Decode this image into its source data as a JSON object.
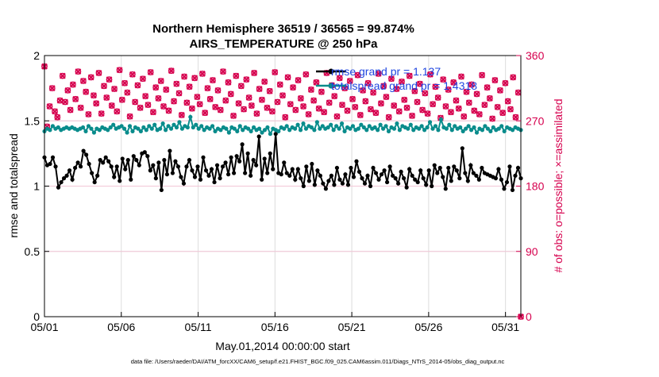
{
  "chart_data": {
    "type": "line",
    "title": "Northern Hemisphere 36519 / 36565 = 99.874%",
    "subtitle": "AIRS_TEMPERATURE @ 250 hPa",
    "xlabel": "May.01,2014 00:00:00 start",
    "ylabel": "rmse and totalspread",
    "ylabel_right": "# of obs: o=possible; ×=assimilated",
    "xlim": [
      0,
      31
    ],
    "ylim": [
      0,
      2
    ],
    "ylim_right": [
      0,
      360
    ],
    "x_ticks": [
      0,
      5,
      10,
      15,
      20,
      25,
      30
    ],
    "x_tick_labels": [
      "05/01",
      "05/06",
      "05/11",
      "05/16",
      "05/21",
      "05/26",
      "05/31"
    ],
    "y_ticks": [
      0,
      0.5,
      1,
      1.5,
      2
    ],
    "y_tick_labels": [
      "0",
      "0.5",
      "1",
      "1.5",
      "2"
    ],
    "y_ticks_right": [
      0,
      90,
      180,
      270,
      360
    ],
    "y_tick_labels_right": [
      "0",
      "90",
      "180",
      "270",
      "360"
    ],
    "grid": true,
    "legend_position": "top-right",
    "footnote": "data file: /Users/raeder/DAI/ATM_forcXX/CAM6_setup/f.e21.FHIST_BGC.f09_025.CAM6assim.011/Diags_NTrS_2014-05/obs_diag_output.nc",
    "series": [
      {
        "name": "rmse grand pr = 1.137",
        "color": "#000000",
        "axis": "left",
        "marker": "circle",
        "values": [
          1.22,
          1.16,
          1.17,
          1.22,
          1.15,
          0.99,
          1.03,
          1.06,
          1.08,
          1.12,
          1.05,
          1.14,
          1.18,
          1.15,
          1.27,
          1.24,
          1.17,
          1.1,
          1.03,
          1.08,
          1.2,
          1.18,
          1.22,
          1.19,
          1.15,
          1.07,
          1.15,
          1.04,
          1.21,
          1.13,
          1.2,
          1.05,
          1.23,
          1.2,
          1.16,
          1.25,
          1.26,
          1.23,
          1.12,
          1.16,
          1.06,
          1.18,
          0.97,
          1.2,
          1.09,
          1.27,
          1.1,
          1.19,
          1.15,
          1.07,
          1.02,
          1.15,
          1.2,
          1.12,
          1.07,
          1.15,
          1.05,
          1.22,
          1.12,
          1.08,
          1.13,
          1.03,
          1.16,
          1.06,
          1.15,
          1.18,
          1.09,
          1.22,
          1.1,
          1.23,
          1.19,
          1.32,
          1.1,
          1.25,
          1.08,
          1.2,
          1.16,
          1.38,
          1.05,
          1.21,
          1.1,
          1.25,
          1.13,
          1.4,
          1.1,
          1.09,
          1.18,
          1.1,
          1.08,
          1.13,
          1.05,
          1.13,
          1.06,
          1.0,
          1.15,
          1.04,
          1.17,
          1.01,
          1.12,
          1.08,
          1.02,
          0.98,
          1.04,
          1.08,
          1.01,
          1.14,
          1.05,
          1.02,
          1.09,
          1.01,
          1.14,
          1.07,
          1.19,
          1.11,
          1.06,
          1.02,
          1.08,
          1.0,
          1.14,
          1.1,
          1.05,
          1.09,
          1.12,
          1.03,
          1.15,
          1.08,
          1.06,
          1.02,
          1.11,
          1.06,
          0.99,
          1.13,
          1.08,
          1.05,
          1.03,
          1.12,
          1.06,
          1.01,
          1.12,
          1.0,
          1.16,
          1.1,
          1.14,
          1.07,
          0.98,
          1.14,
          1.04,
          1.15,
          1.12,
          1.06,
          1.29,
          1.1,
          1.04,
          1.16,
          1.1,
          1.08,
          1.05,
          1.14,
          1.1,
          1.09,
          1.08,
          1.07,
          1.06,
          1.13,
          1.05,
          0.98,
          1.03,
          1.15,
          0.97,
          1.08,
          1.14,
          1.06
        ]
      },
      {
        "name": "totalspread grand pr = 1.4318",
        "color": "#0a8c8c",
        "axis": "left",
        "marker": "circle",
        "values": [
          1.42,
          1.44,
          1.43,
          1.46,
          1.44,
          1.45,
          1.43,
          1.44,
          1.45,
          1.44,
          1.45,
          1.44,
          1.43,
          1.44,
          1.45,
          1.42,
          1.46,
          1.44,
          1.41,
          1.44,
          1.43,
          1.45,
          1.44,
          1.43,
          1.45,
          1.47,
          1.44,
          1.45,
          1.46,
          1.44,
          1.41,
          1.46,
          1.42,
          1.45,
          1.44,
          1.42,
          1.45,
          1.43,
          1.46,
          1.44,
          1.47,
          1.43,
          1.44,
          1.48,
          1.43,
          1.46,
          1.44,
          1.47,
          1.45,
          1.49,
          1.44,
          1.46,
          1.45,
          1.53,
          1.45,
          1.47,
          1.44,
          1.46,
          1.43,
          1.45,
          1.44,
          1.46,
          1.42,
          1.44,
          1.43,
          1.45,
          1.44,
          1.41,
          1.45,
          1.44,
          1.42,
          1.46,
          1.43,
          1.45,
          1.44,
          1.42,
          1.45,
          1.43,
          1.44,
          1.41,
          1.43,
          1.45,
          1.4,
          1.44,
          1.43,
          1.42,
          1.45,
          1.44,
          1.46,
          1.43,
          1.45,
          1.44,
          1.47,
          1.43,
          1.48,
          1.44,
          1.46,
          1.45,
          1.43,
          1.49,
          1.44,
          1.46,
          1.44,
          1.45,
          1.47,
          1.43,
          1.46,
          1.44,
          1.48,
          1.42,
          1.45,
          1.44,
          1.46,
          1.43,
          1.44,
          1.47,
          1.45,
          1.43,
          1.46,
          1.44,
          1.45,
          1.43,
          1.47,
          1.44,
          1.46,
          1.42,
          1.45,
          1.44,
          1.48,
          1.43,
          1.46,
          1.45,
          1.44,
          1.47,
          1.43,
          1.45,
          1.44,
          1.46,
          1.43,
          1.45,
          1.49,
          1.44,
          1.46,
          1.43,
          1.51,
          1.45,
          1.44,
          1.47,
          1.43,
          1.46,
          1.44,
          1.45,
          1.42,
          1.44,
          1.46,
          1.43,
          1.45,
          1.41,
          1.44,
          1.43,
          1.46,
          1.44,
          1.42,
          1.45,
          1.43,
          1.44,
          1.46,
          1.42,
          1.45,
          1.44,
          1.43,
          1.45,
          1.44,
          1.43
        ]
      },
      {
        "name": "possible",
        "color": "#d6004e",
        "axis": "right",
        "marker": "o",
        "values": [
          345,
          262,
          290,
          315,
          283,
          275,
          298,
          332,
          296,
          312,
          285,
          320,
          300,
          338,
          288,
          325,
          310,
          279,
          330,
          305,
          294,
          336,
          280,
          318,
          302,
          327,
          291,
          314,
          283,
          340,
          299,
          322,
          309,
          276,
          334,
          296,
          319,
          288,
          328,
          304,
          292,
          337,
          282,
          316,
          301,
          325,
          290,
          313,
          284,
          339,
          297,
          321,
          308,
          278,
          331,
          295,
          317,
          287,
          329,
          303,
          293,
          335,
          281,
          315,
          300,
          326,
          289,
          312,
          285,
          338,
          298,
          323,
          307,
          277,
          332,
          294,
          318,
          286,
          327,
          302,
          291,
          336,
          280,
          314,
          299,
          324,
          288,
          311,
          283,
          337,
          296,
          320,
          305,
          275,
          330,
          293,
          316,
          285,
          326,
          301,
          290,
          334,
          279,
          313,
          298,
          323,
          287,
          310,
          282,
          336,
          295,
          319,
          304,
          276,
          329,
          292,
          315,
          284,
          325,
          300,
          289,
          333,
          278,
          312,
          297,
          322,
          286,
          309,
          281,
          335,
          294,
          318,
          303,
          275,
          328,
          291,
          314,
          283,
          324,
          299,
          288,
          332,
          277,
          311,
          296,
          321,
          285,
          308,
          280,
          334,
          293,
          317,
          302,
          274,
          327,
          290,
          313,
          282,
          323,
          298,
          287,
          331,
          276,
          310,
          295,
          320,
          284,
          307,
          279,
          333,
          292,
          316,
          301,
          273,
          326,
          289,
          312,
          281,
          322,
          297,
          286,
          330,
          275,
          309,
          0
        ]
      },
      {
        "name": "assimilated",
        "color": "#d6004e",
        "axis": "right",
        "marker": "x",
        "values": [
          345,
          262,
          290,
          315,
          283,
          275,
          298,
          332,
          296,
          312,
          285,
          320,
          300,
          338,
          288,
          325,
          310,
          279,
          330,
          305,
          294,
          336,
          280,
          318,
          302,
          327,
          291,
          314,
          283,
          340,
          299,
          322,
          309,
          276,
          334,
          296,
          319,
          288,
          328,
          304,
          292,
          337,
          282,
          316,
          301,
          325,
          290,
          313,
          284,
          339,
          297,
          321,
          308,
          278,
          331,
          295,
          317,
          287,
          329,
          303,
          293,
          335,
          281,
          315,
          300,
          326,
          289,
          312,
          285,
          338,
          298,
          323,
          307,
          277,
          332,
          294,
          318,
          286,
          327,
          302,
          291,
          336,
          280,
          314,
          299,
          324,
          288,
          311,
          283,
          337,
          296,
          320,
          305,
          275,
          330,
          293,
          316,
          285,
          326,
          301,
          290,
          334,
          279,
          313,
          298,
          323,
          287,
          310,
          282,
          336,
          295,
          319,
          304,
          276,
          329,
          292,
          315,
          284,
          325,
          300,
          289,
          333,
          278,
          312,
          297,
          322,
          286,
          309,
          281,
          335,
          294,
          318,
          303,
          275,
          328,
          291,
          314,
          283,
          324,
          299,
          288,
          332,
          277,
          311,
          296,
          321,
          285,
          308,
          280,
          334,
          293,
          317,
          302,
          274,
          327,
          290,
          313,
          282,
          323,
          298,
          287,
          331,
          276,
          310,
          295,
          320,
          284,
          307,
          279,
          333,
          292,
          316,
          301,
          273,
          326,
          289,
          312,
          281,
          322,
          297,
          286,
          330,
          275,
          309,
          0
        ]
      }
    ]
  }
}
